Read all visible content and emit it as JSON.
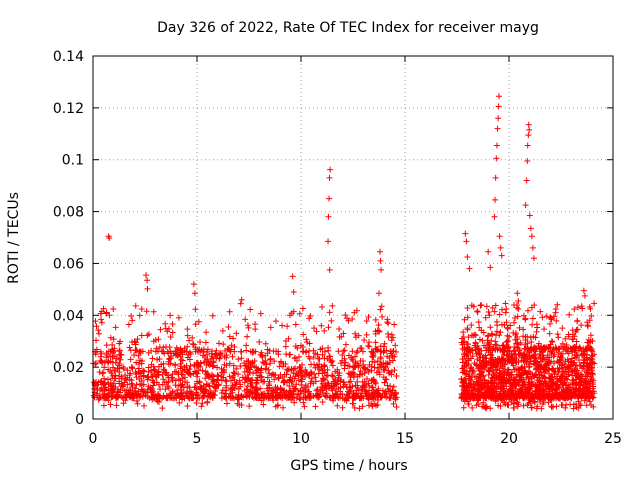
{
  "chart_data": {
    "type": "scatter",
    "title": "Day 326 of 2022, Rate Of TEC Index for receiver mayg",
    "xlabel": "GPS time / hours",
    "ylabel": "ROTI / TECUs",
    "xlim": [
      0,
      25
    ],
    "ylim": [
      0,
      0.14
    ],
    "xticks": [
      0,
      5,
      10,
      15,
      20,
      25
    ],
    "yticks": [
      0,
      0.02,
      0.04,
      0.06,
      0.08,
      0.1,
      0.12,
      0.14
    ],
    "xtick_labels": [
      "0",
      "5",
      "10",
      "15",
      "20",
      "25"
    ],
    "ytick_labels": [
      "0",
      "0.02",
      "0.04",
      "0.06",
      "0.08",
      "0.1",
      "0.12",
      "0.14"
    ],
    "grid": true,
    "marker": "+",
    "color": "#ff0000",
    "bands": [
      {
        "x": [
          0,
          14.6
        ],
        "y": [
          0.004,
          0.026
        ]
      },
      {
        "x": [
          17.7,
          24.1
        ],
        "y": [
          0.004,
          0.027
        ]
      }
    ],
    "outliers": [
      {
        "x": 0.75,
        "y": 0.0705
      },
      {
        "x": 0.78,
        "y": 0.0698
      },
      {
        "x": 2.55,
        "y": 0.0555
      },
      {
        "x": 2.6,
        "y": 0.0535
      },
      {
        "x": 2.62,
        "y": 0.0502
      },
      {
        "x": 4.85,
        "y": 0.052
      },
      {
        "x": 4.9,
        "y": 0.0485
      },
      {
        "x": 7.1,
        "y": 0.0445
      },
      {
        "x": 7.15,
        "y": 0.046
      },
      {
        "x": 9.6,
        "y": 0.055
      },
      {
        "x": 9.65,
        "y": 0.049
      },
      {
        "x": 11.3,
        "y": 0.0685
      },
      {
        "x": 11.32,
        "y": 0.078
      },
      {
        "x": 11.35,
        "y": 0.085
      },
      {
        "x": 11.37,
        "y": 0.093
      },
      {
        "x": 11.4,
        "y": 0.0962
      },
      {
        "x": 11.38,
        "y": 0.0575
      },
      {
        "x": 13.8,
        "y": 0.0645
      },
      {
        "x": 13.82,
        "y": 0.061
      },
      {
        "x": 13.85,
        "y": 0.0575
      },
      {
        "x": 13.75,
        "y": 0.0485
      },
      {
        "x": 17.9,
        "y": 0.0715
      },
      {
        "x": 17.95,
        "y": 0.0685
      },
      {
        "x": 18.0,
        "y": 0.0625
      },
      {
        "x": 18.1,
        "y": 0.058
      },
      {
        "x": 19.0,
        "y": 0.0645
      },
      {
        "x": 19.1,
        "y": 0.0585
      },
      {
        "x": 19.3,
        "y": 0.078
      },
      {
        "x": 19.33,
        "y": 0.0845
      },
      {
        "x": 19.36,
        "y": 0.093
      },
      {
        "x": 19.39,
        "y": 0.1005
      },
      {
        "x": 19.42,
        "y": 0.1055
      },
      {
        "x": 19.45,
        "y": 0.112
      },
      {
        "x": 19.48,
        "y": 0.116
      },
      {
        "x": 19.5,
        "y": 0.1205
      },
      {
        "x": 19.52,
        "y": 0.1245
      },
      {
        "x": 19.55,
        "y": 0.0705
      },
      {
        "x": 19.6,
        "y": 0.066
      },
      {
        "x": 19.65,
        "y": 0.063
      },
      {
        "x": 20.4,
        "y": 0.0485
      },
      {
        "x": 20.45,
        "y": 0.0455
      },
      {
        "x": 20.8,
        "y": 0.0825
      },
      {
        "x": 20.85,
        "y": 0.092
      },
      {
        "x": 20.88,
        "y": 0.0995
      },
      {
        "x": 20.9,
        "y": 0.1055
      },
      {
        "x": 20.93,
        "y": 0.1095
      },
      {
        "x": 20.95,
        "y": 0.1135
      },
      {
        "x": 20.97,
        "y": 0.1115
      },
      {
        "x": 21.0,
        "y": 0.0785
      },
      {
        "x": 21.05,
        "y": 0.0735
      },
      {
        "x": 21.1,
        "y": 0.0705
      },
      {
        "x": 21.15,
        "y": 0.066
      },
      {
        "x": 21.2,
        "y": 0.062
      },
      {
        "x": 23.6,
        "y": 0.0495
      },
      {
        "x": 23.65,
        "y": 0.0475
      }
    ],
    "density_note": ""
  }
}
